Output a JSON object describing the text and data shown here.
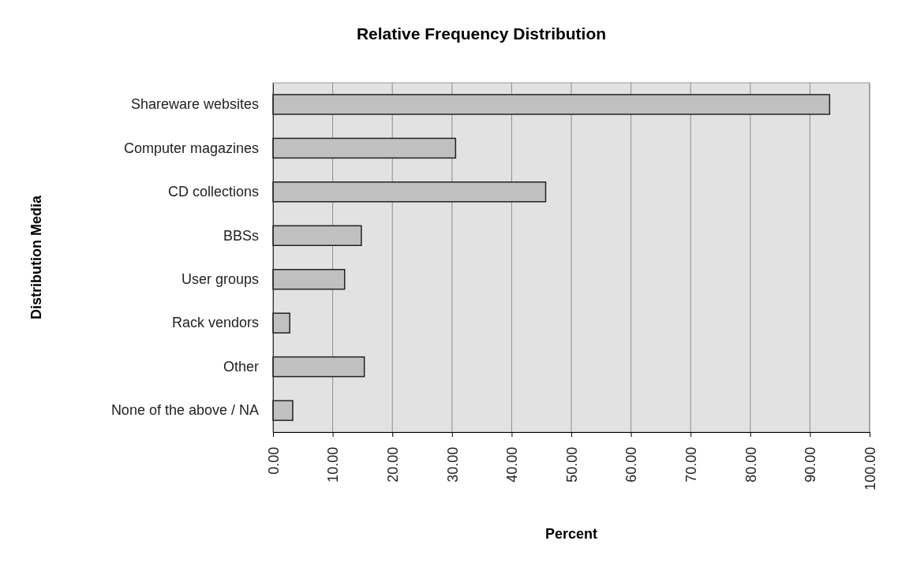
{
  "chart_data": {
    "type": "bar",
    "orientation": "horizontal",
    "title": "Relative Frequency Distribution",
    "xlabel": "Percent",
    "ylabel": "Distribution Media",
    "categories": [
      "Shareware websites",
      "Computer magazines",
      "CD collections",
      "BBSs",
      "User groups",
      "Rack vendors",
      "Other",
      "None of the above / NA"
    ],
    "values": [
      93.3,
      30.6,
      45.7,
      14.8,
      12.0,
      2.8,
      15.3,
      3.3
    ],
    "color": "#c0c0c0",
    "xlim": [
      0,
      100
    ],
    "xticks": [
      {
        "value": 0,
        "label": "0.00"
      },
      {
        "value": 10,
        "label": "10.00"
      },
      {
        "value": 20,
        "label": "20.00"
      },
      {
        "value": 30,
        "label": "30.00"
      },
      {
        "value": 40,
        "label": "40.00"
      },
      {
        "value": 50,
        "label": "50.00"
      },
      {
        "value": 60,
        "label": "60.00"
      },
      {
        "value": 70,
        "label": "70.00"
      },
      {
        "value": 80,
        "label": "80.00"
      },
      {
        "value": 90,
        "label": "90.00"
      },
      {
        "value": 100,
        "label": "100.00"
      }
    ],
    "grid": "x"
  }
}
